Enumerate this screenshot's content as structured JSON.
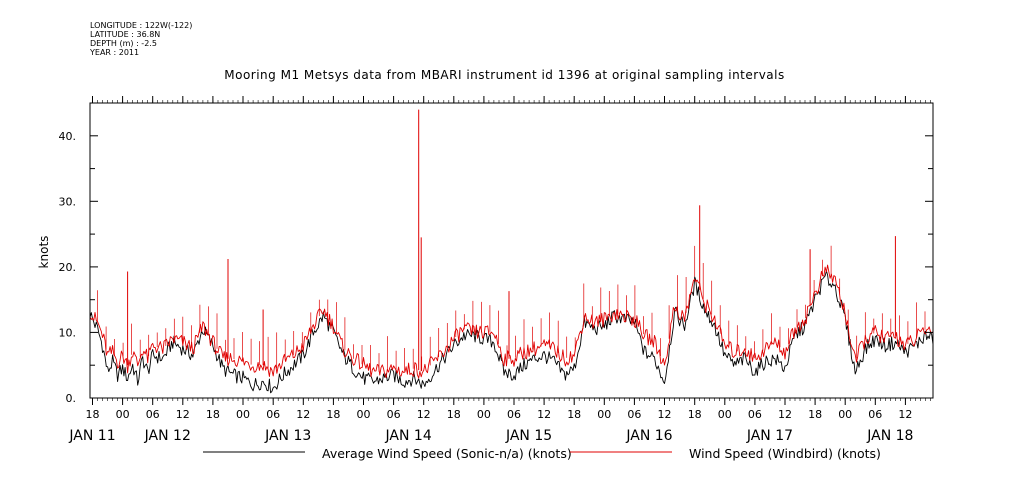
{
  "metadata": [
    "LONGITUDE : 122W(-122)",
    "LATITUDE : 36.8N",
    "DEPTH (m) : -2.5",
    "YEAR : 2011"
  ],
  "colors": {
    "sonic": "#000000",
    "windbird": "#e00000",
    "axis": "#000000"
  },
  "chart_data": {
    "type": "line",
    "title": "Mooring M1 Metsys data from MBARI instrument id 1396 at original sampling intervals",
    "ylabel": "knots",
    "ylim": [
      0,
      45
    ],
    "yticks": [
      {
        "value": 0,
        "label": "0."
      },
      {
        "value": 10,
        "label": "10."
      },
      {
        "value": 20,
        "label": "20."
      },
      {
        "value": 30,
        "label": "30."
      },
      {
        "value": 40,
        "label": "40."
      }
    ],
    "x_unit": "hours since 2011-01-10 18:00",
    "xlim": [
      -0.5,
      167.5
    ],
    "hour_ticks": [
      {
        "hour": 0,
        "label": "18"
      },
      {
        "hour": 6,
        "label": "00"
      },
      {
        "hour": 12,
        "label": "06"
      },
      {
        "hour": 18,
        "label": "12"
      },
      {
        "hour": 24,
        "label": "18"
      },
      {
        "hour": 30,
        "label": "00"
      },
      {
        "hour": 36,
        "label": "06"
      },
      {
        "hour": 42,
        "label": "12"
      },
      {
        "hour": 48,
        "label": "18"
      },
      {
        "hour": 54,
        "label": "00"
      },
      {
        "hour": 60,
        "label": "06"
      },
      {
        "hour": 66,
        "label": "12"
      },
      {
        "hour": 72,
        "label": "18"
      },
      {
        "hour": 78,
        "label": "00"
      },
      {
        "hour": 84,
        "label": "06"
      },
      {
        "hour": 90,
        "label": "12"
      },
      {
        "hour": 96,
        "label": "18"
      },
      {
        "hour": 102,
        "label": "00"
      },
      {
        "hour": 108,
        "label": "06"
      },
      {
        "hour": 114,
        "label": "12"
      },
      {
        "hour": 120,
        "label": "18"
      },
      {
        "hour": 126,
        "label": "00"
      },
      {
        "hour": 132,
        "label": "06"
      },
      {
        "hour": 138,
        "label": "12"
      },
      {
        "hour": 144,
        "label": "18"
      },
      {
        "hour": 150,
        "label": "00"
      },
      {
        "hour": 156,
        "label": "06"
      },
      {
        "hour": 162,
        "label": "12"
      }
    ],
    "day_labels": [
      {
        "hour": 0,
        "label": "JAN 11"
      },
      {
        "hour": 15,
        "label": "JAN 12"
      },
      {
        "hour": 39,
        "label": "JAN 13"
      },
      {
        "hour": 63,
        "label": "JAN 14"
      },
      {
        "hour": 87,
        "label": "JAN 15"
      },
      {
        "hour": 111,
        "label": "JAN 16"
      },
      {
        "hour": 135,
        "label": "JAN 17"
      },
      {
        "hour": 159,
        "label": "JAN 18"
      }
    ],
    "series": [
      {
        "name": "Average Wind Speed (Sonic-n/a) (knots)",
        "color": "#000000",
        "x": [
          -0.5,
          0,
          1,
          2,
          3,
          4,
          5,
          6,
          7,
          8,
          9,
          10,
          11,
          12,
          14,
          16,
          18,
          20,
          22,
          24,
          26,
          28,
          30,
          32,
          34,
          36,
          38,
          40,
          42,
          44,
          46,
          48,
          50,
          52,
          54,
          56,
          58,
          60,
          62,
          64,
          66,
          68,
          70,
          72,
          74,
          76,
          78,
          80,
          82,
          84,
          86,
          88,
          90,
          92,
          94,
          96,
          98,
          100,
          102,
          104,
          106,
          108,
          110,
          112,
          114,
          116,
          118,
          120,
          122,
          124,
          126,
          128,
          130,
          132,
          134,
          136,
          138,
          140,
          142,
          144,
          146,
          148,
          150,
          152,
          154,
          156,
          158,
          160,
          162,
          164,
          166,
          167.5
        ],
        "y": [
          13.0,
          12.0,
          10.5,
          8.0,
          4.0,
          5.5,
          3.5,
          4.5,
          3.0,
          5.0,
          2.5,
          6.0,
          4.0,
          6.5,
          6.0,
          8.5,
          7.5,
          6.5,
          10.5,
          8.0,
          4.5,
          3.5,
          3.0,
          2.0,
          2.5,
          1.5,
          3.5,
          5.0,
          6.5,
          10.0,
          12.5,
          10.0,
          6.5,
          4.5,
          3.0,
          2.5,
          3.0,
          3.5,
          2.5,
          3.0,
          2.0,
          4.0,
          6.0,
          8.0,
          9.5,
          9.5,
          9.0,
          8.5,
          4.0,
          3.5,
          5.0,
          6.0,
          6.5,
          5.5,
          3.5,
          4.5,
          11.5,
          10.5,
          11.0,
          12.5,
          12.0,
          11.5,
          7.0,
          6.0,
          2.5,
          13.0,
          11.0,
          17.5,
          13.5,
          11.0,
          6.5,
          5.0,
          6.0,
          4.0,
          5.5,
          6.0,
          4.5,
          9.5,
          11.0,
          15.0,
          18.5,
          17.0,
          12.0,
          4.0,
          7.5,
          9.0,
          8.0,
          8.5,
          7.0,
          8.0,
          9.5,
          9.0
        ]
      },
      {
        "name": "Wind Speed (Windbird) (knots)",
        "color": "#e00000",
        "x": [
          -0.5,
          0,
          1,
          2,
          3,
          4,
          5,
          6,
          7,
          8,
          9,
          10,
          11,
          12,
          14,
          16,
          18,
          20,
          22,
          24,
          26,
          28,
          30,
          32,
          34,
          36,
          38,
          40,
          42,
          44,
          46,
          48,
          50,
          52,
          54,
          56,
          58,
          60,
          62,
          64,
          66,
          68,
          70,
          72,
          74,
          76,
          78,
          80,
          82,
          84,
          86,
          88,
          90,
          92,
          94,
          96,
          98,
          100,
          102,
          104,
          106,
          108,
          110,
          112,
          114,
          116,
          118,
          120,
          122,
          124,
          126,
          128,
          130,
          132,
          134,
          136,
          138,
          140,
          142,
          144,
          146,
          148,
          150,
          152,
          154,
          156,
          158,
          160,
          162,
          164,
          166,
          167.5
        ],
        "y": [
          13.5,
          12.5,
          11.5,
          9.5,
          6.5,
          7.0,
          5.5,
          6.5,
          5.0,
          7.0,
          5.0,
          7.5,
          6.0,
          8.0,
          7.5,
          9.0,
          8.5,
          7.5,
          11.0,
          8.5,
          6.0,
          6.0,
          5.5,
          5.0,
          5.0,
          4.0,
          5.5,
          6.5,
          8.0,
          11.0,
          13.5,
          11.0,
          7.5,
          6.0,
          5.0,
          4.0,
          4.0,
          4.5,
          4.0,
          4.5,
          4.0,
          5.5,
          7.0,
          9.0,
          10.5,
          10.0,
          10.0,
          10.0,
          6.0,
          6.0,
          7.0,
          7.5,
          8.0,
          7.5,
          6.0,
          6.5,
          12.5,
          11.5,
          12.0,
          13.0,
          12.5,
          12.0,
          9.5,
          8.5,
          5.0,
          14.0,
          12.0,
          18.5,
          14.5,
          12.0,
          8.0,
          7.0,
          7.5,
          6.0,
          7.5,
          8.5,
          7.0,
          10.5,
          12.0,
          16.0,
          19.5,
          18.0,
          13.0,
          5.5,
          9.0,
          10.0,
          9.0,
          9.5,
          8.0,
          9.0,
          10.5,
          10.0
        ]
      }
    ],
    "windbird_spikes": [
      {
        "hour": 7,
        "value": 19.3
      },
      {
        "hour": 27,
        "value": 21.2
      },
      {
        "hour": 34,
        "value": 13.5
      },
      {
        "hour": 65,
        "value": 44.0
      },
      {
        "hour": 65.5,
        "value": 24.5
      },
      {
        "hour": 83,
        "value": 16.3
      },
      {
        "hour": 121,
        "value": 29.4
      },
      {
        "hour": 143,
        "value": 22.7
      },
      {
        "hour": 160,
        "value": 24.7
      }
    ]
  }
}
